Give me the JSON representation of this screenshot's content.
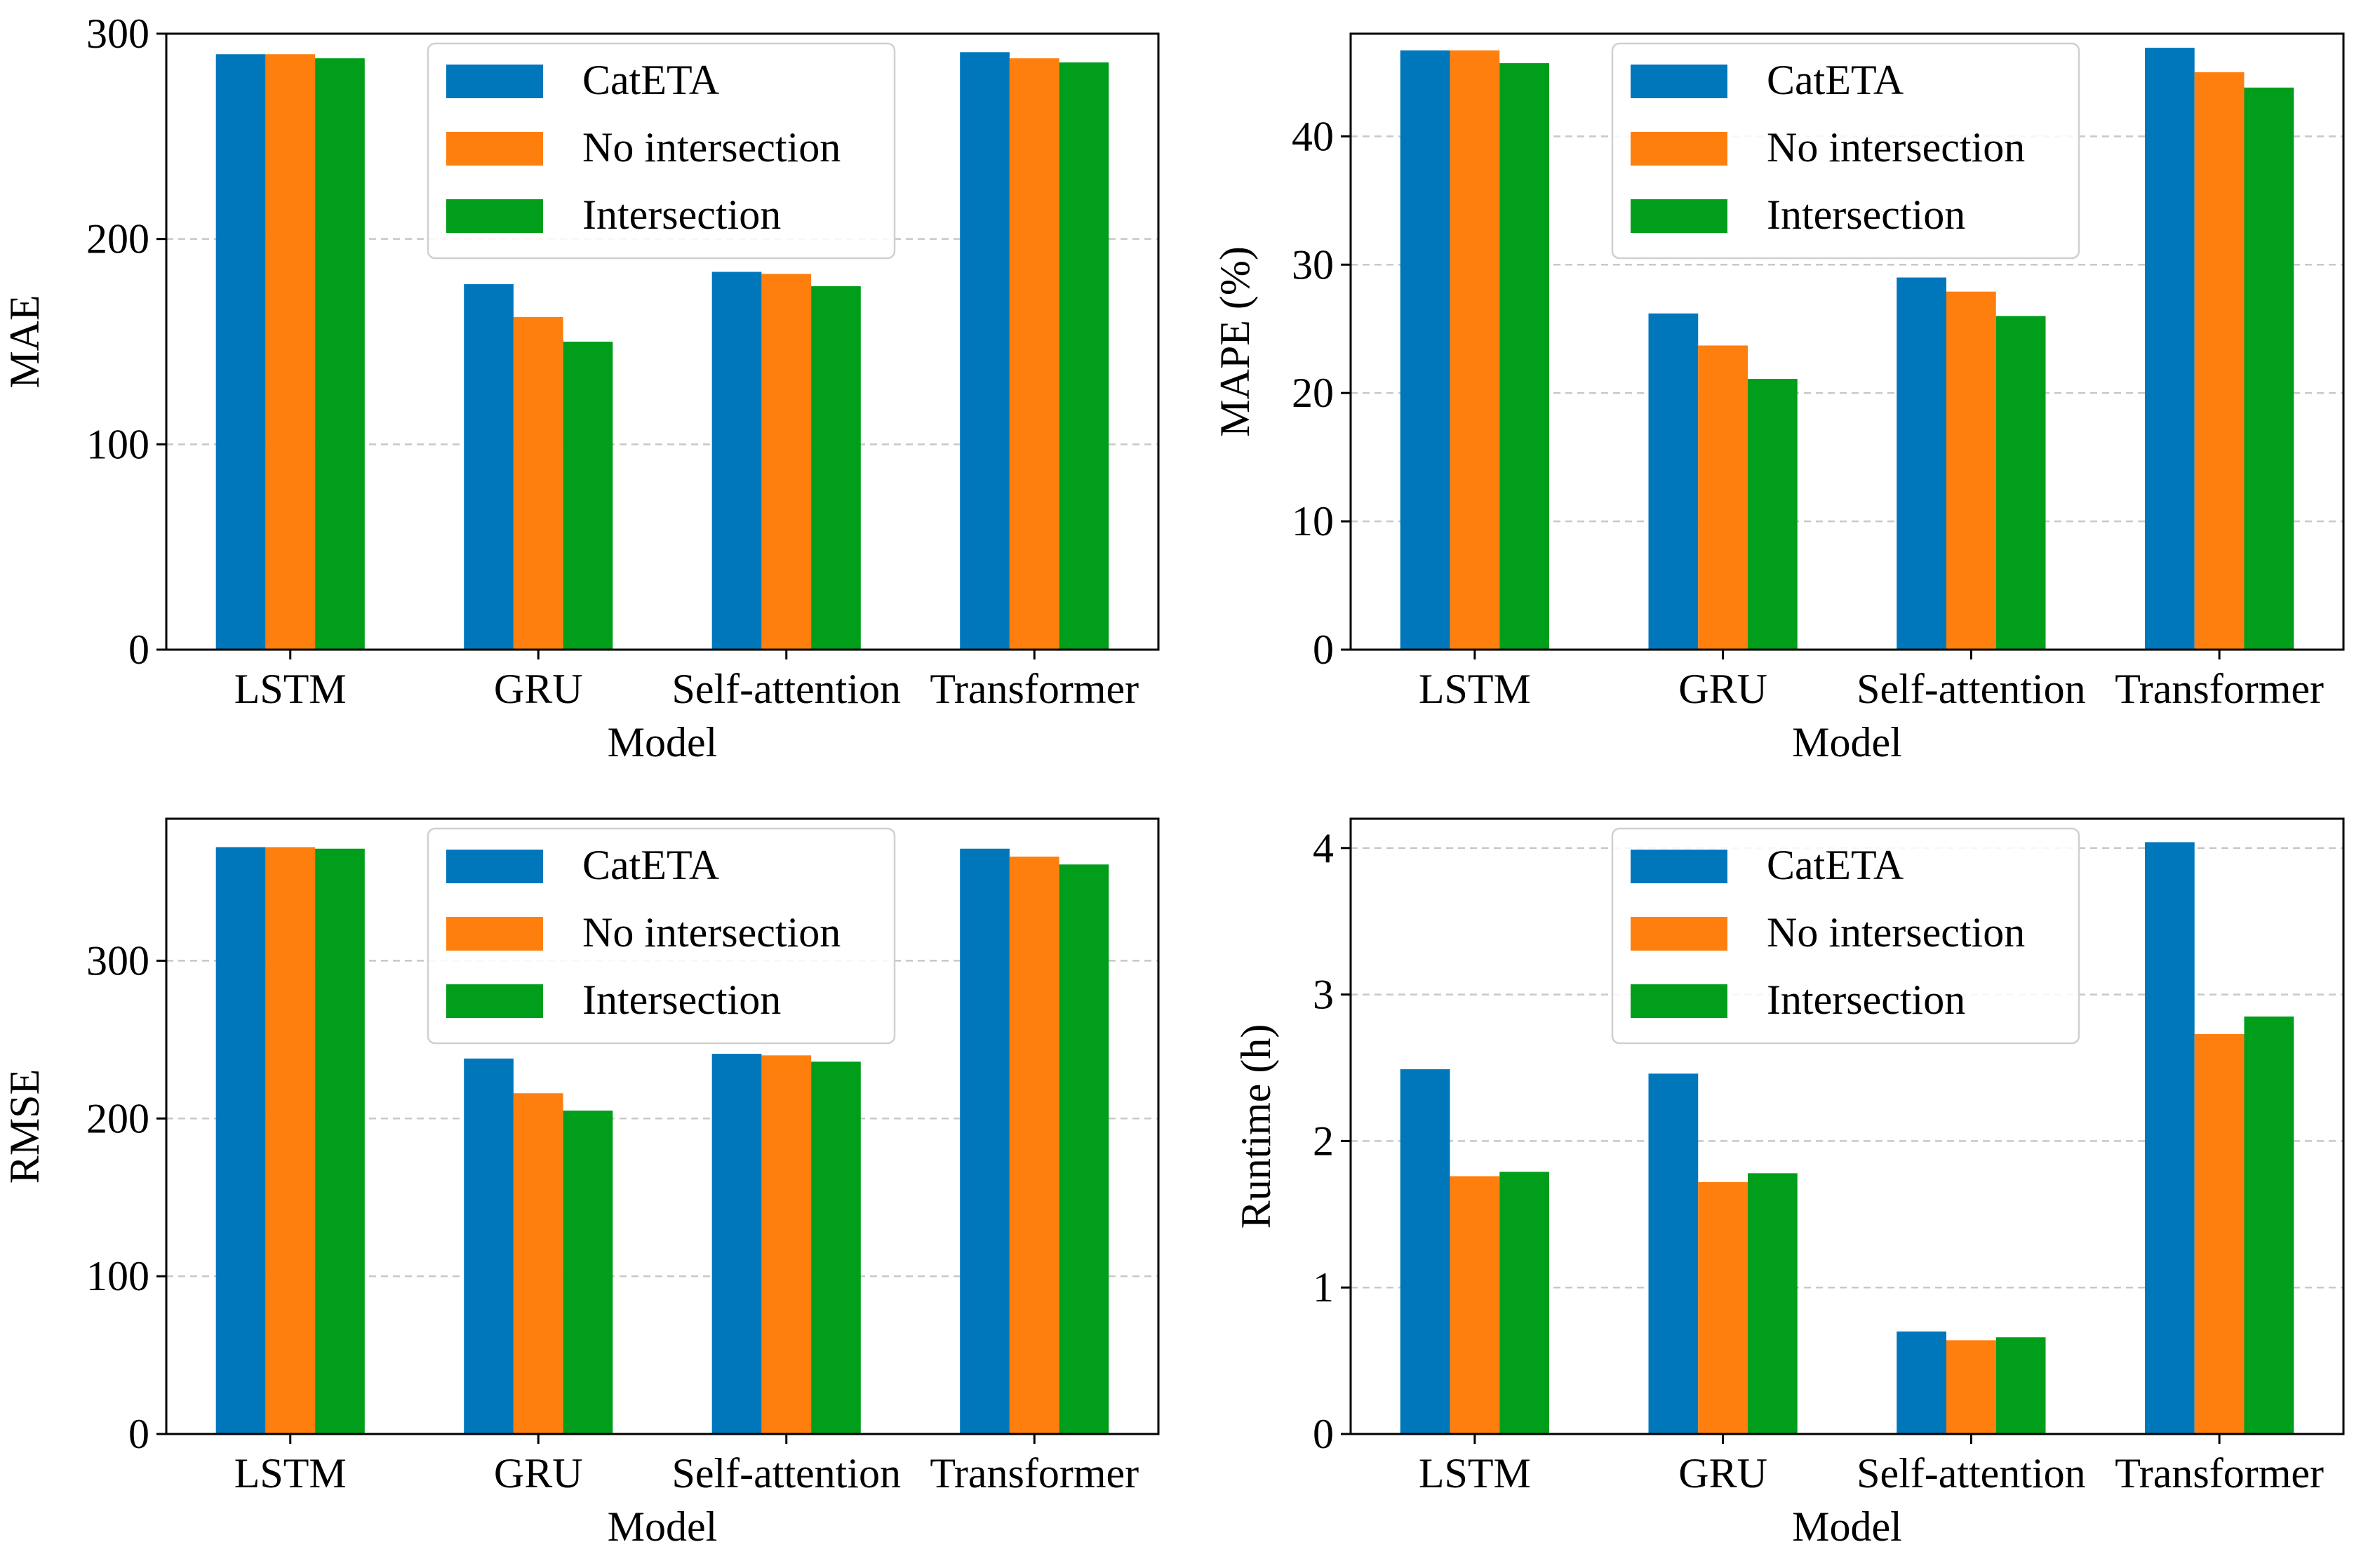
{
  "legend_labels": [
    "CatETA",
    "No intersection",
    "Intersection"
  ],
  "colors": {
    "CatETA": "#0077bb",
    "No intersection": "#ff7f0e",
    "Intersection": "#009e1a",
    "grid": "#c8c8c8",
    "axis": "#000000"
  },
  "chart_data": [
    {
      "type": "bar",
      "title": "",
      "xlabel": "Model",
      "ylabel": "MAE",
      "categories": [
        "LSTM",
        "GRU",
        "Self-attention",
        "Transformer"
      ],
      "ylim": [
        0,
        300
      ],
      "yticks": [
        0,
        100,
        200,
        300
      ],
      "grid": true,
      "legend": "top-center",
      "series": [
        {
          "name": "CatETA",
          "values": [
            290,
            178,
            184,
            291
          ]
        },
        {
          "name": "No intersection",
          "values": [
            290,
            162,
            183,
            288
          ]
        },
        {
          "name": "Intersection",
          "values": [
            288,
            150,
            177,
            286
          ]
        }
      ]
    },
    {
      "type": "bar",
      "title": "",
      "xlabel": "Model",
      "ylabel": "MAPE (%)",
      "categories": [
        "LSTM",
        "GRU",
        "Self-attention",
        "Transformer"
      ],
      "ylim": [
        0,
        48
      ],
      "yticks": [
        0,
        10,
        20,
        30,
        40
      ],
      "grid": true,
      "legend": "top-center",
      "series": [
        {
          "name": "CatETA",
          "values": [
            46.7,
            26.2,
            29.0,
            46.9
          ]
        },
        {
          "name": "No intersection",
          "values": [
            46.7,
            23.7,
            27.9,
            45.0
          ]
        },
        {
          "name": "Intersection",
          "values": [
            45.7,
            21.1,
            26.0,
            43.8
          ]
        }
      ]
    },
    {
      "type": "bar",
      "title": "",
      "xlabel": "Model",
      "ylabel": "RMSE",
      "categories": [
        "LSTM",
        "GRU",
        "Self-attention",
        "Transformer"
      ],
      "ylim": [
        0,
        390
      ],
      "yticks": [
        0,
        100,
        200,
        300
      ],
      "grid": true,
      "legend": "top-center",
      "series": [
        {
          "name": "CatETA",
          "values": [
            372,
            238,
            241,
            371
          ]
        },
        {
          "name": "No intersection",
          "values": [
            372,
            216,
            240,
            366
          ]
        },
        {
          "name": "Intersection",
          "values": [
            371,
            205,
            236,
            361
          ]
        }
      ]
    },
    {
      "type": "bar",
      "title": "",
      "xlabel": "Model",
      "ylabel": "Runtime (h)",
      "categories": [
        "LSTM",
        "GRU",
        "Self-attention",
        "Transformer"
      ],
      "ylim": [
        0,
        4.2
      ],
      "yticks": [
        0,
        1,
        2,
        3,
        4
      ],
      "grid": true,
      "legend": "top-center",
      "series": [
        {
          "name": "CatETA",
          "values": [
            2.49,
            2.46,
            0.7,
            4.04
          ]
        },
        {
          "name": "No intersection",
          "values": [
            1.76,
            1.72,
            0.64,
            2.73
          ]
        },
        {
          "name": "Intersection",
          "values": [
            1.79,
            1.78,
            0.66,
            2.85
          ]
        }
      ]
    }
  ]
}
